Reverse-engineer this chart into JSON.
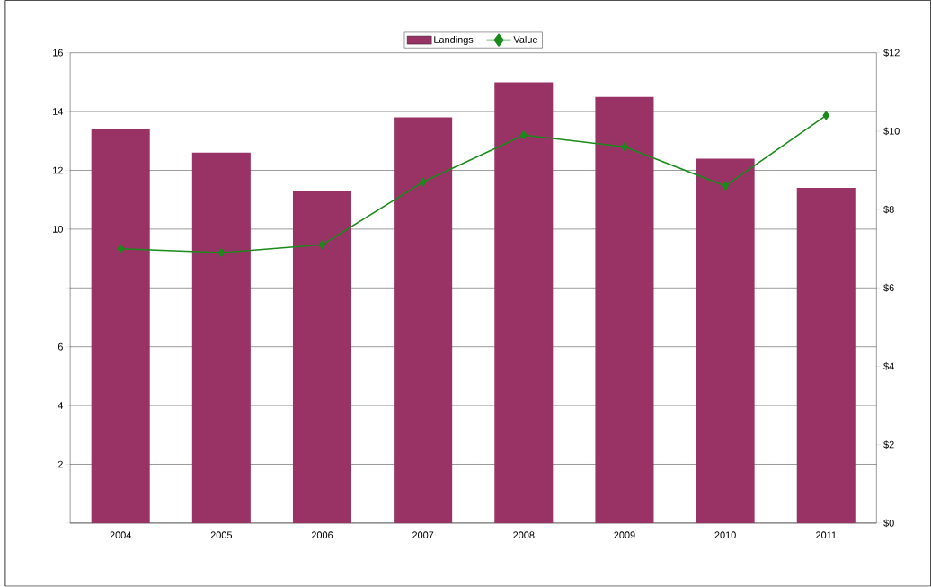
{
  "chart_data": {
    "type": "bar",
    "categories": [
      "2004",
      "2005",
      "2006",
      "2007",
      "2008",
      "2009",
      "2010",
      "2011"
    ],
    "series": [
      {
        "name": "Landings",
        "color": "#993366",
        "values": [
          13.4,
          12.6,
          11.3,
          13.8,
          15.0,
          14.5,
          12.4,
          11.4
        ]
      },
      {
        "name": "Value",
        "type": "line",
        "axis": "y2",
        "color": "#1a8a1a",
        "marker": "diamond",
        "values": [
          7.0,
          6.9,
          7.1,
          8.7,
          9.9,
          9.6,
          8.6,
          10.4
        ]
      }
    ],
    "ylim": [
      0,
      16
    ],
    "yticks": [
      {
        "value": 0,
        "label": null
      },
      2,
      4,
      6,
      {
        "value": 8,
        "label": null
      },
      10,
      12,
      14,
      16
    ],
    "y2lim": [
      0,
      12
    ],
    "y2ticks": [
      {
        "value": 0,
        "label": "$0"
      },
      {
        "value": 2,
        "label": "$2"
      },
      {
        "value": 4,
        "label": "$4"
      },
      {
        "value": 6,
        "label": "$6"
      },
      {
        "value": 8,
        "label": "$8"
      },
      {
        "value": 10,
        "label": "$10"
      },
      {
        "value": 12,
        "label": "$12"
      }
    ],
    "grid": "y",
    "legend": "top"
  }
}
